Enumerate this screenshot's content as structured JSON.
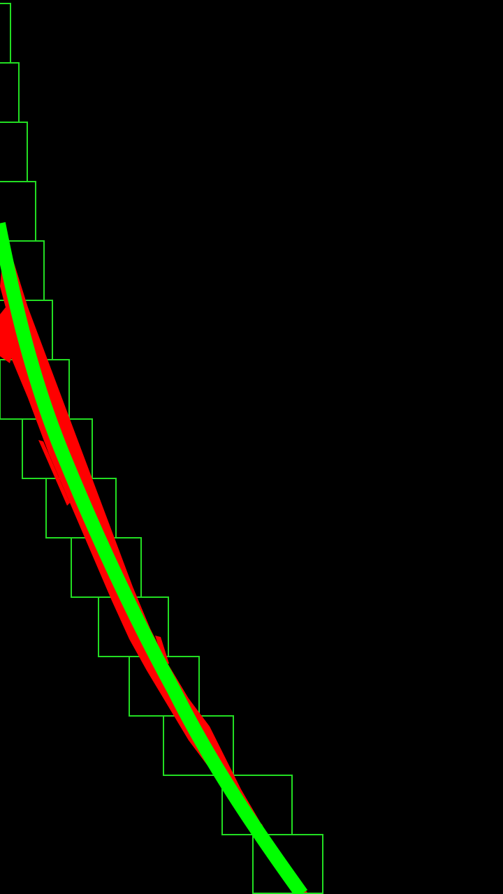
{
  "colors": {
    "background": "#000000",
    "window_boxes": "#22dd22",
    "lane_pixels": "#ff0000",
    "fitted_curve": "#00ff00"
  },
  "scene": {
    "window_count": 15,
    "description_icons": [
      "sliding-window-box",
      "lane-pixel-cluster",
      "fitted-lane-curve"
    ]
  }
}
